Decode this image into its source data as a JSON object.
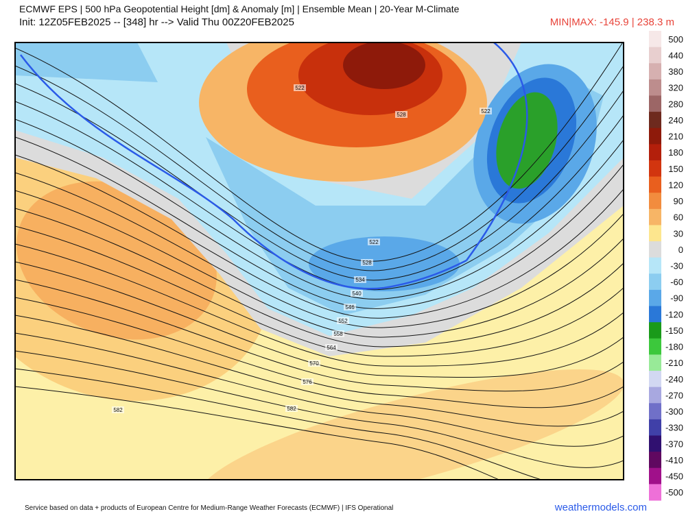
{
  "header": {
    "title": "ECMWF EPS | 500 hPa Geopotential Height [dm] & Anomaly [m] | Ensemble Mean | 20-Year M-Climate",
    "init": "Init: 12Z05FEB2025 -- [348] hr --> Valid Thu 00Z20FEB2025",
    "minmax": "MIN|MAX: -145.9 | 238.3 m"
  },
  "colorbar": {
    "labels": [
      500,
      440,
      380,
      320,
      280,
      240,
      210,
      180,
      150,
      120,
      90,
      60,
      30,
      0,
      -30,
      -60,
      -90,
      -120,
      -150,
      -180,
      -210,
      -240,
      -270,
      -300,
      -330,
      -370,
      -410,
      -450,
      -500
    ],
    "colors": [
      "#f6e8e8",
      "#e8cfcf",
      "#d6b0b0",
      "#bd8d8d",
      "#9c6666",
      "#6e2a1e",
      "#8e1a0a",
      "#b31f0b",
      "#d2350f",
      "#e95f1e",
      "#f28c3e",
      "#f7b566",
      "#fde68e",
      "#dcdcdc",
      "#b6e6f8",
      "#8ccdf0",
      "#5aa8e8",
      "#2a78d8",
      "#1a9a1a",
      "#3cc83c",
      "#98ea98",
      "#d2d8f2",
      "#a8a8e0",
      "#7070c8",
      "#4040a8",
      "#301070",
      "#600860",
      "#a0108a",
      "#ee70d8"
    ]
  },
  "map": {
    "contour_labels": [
      522,
      528,
      534,
      540,
      546,
      552,
      558,
      564,
      570,
      576,
      582,
      582,
      522,
      522,
      528
    ]
  },
  "footer": {
    "credit": "Service based on data + products of European Centre for Medium-Range Weather Forecasts (ECMWF) | IFS Operational",
    "brand": "weathermodels.com"
  }
}
